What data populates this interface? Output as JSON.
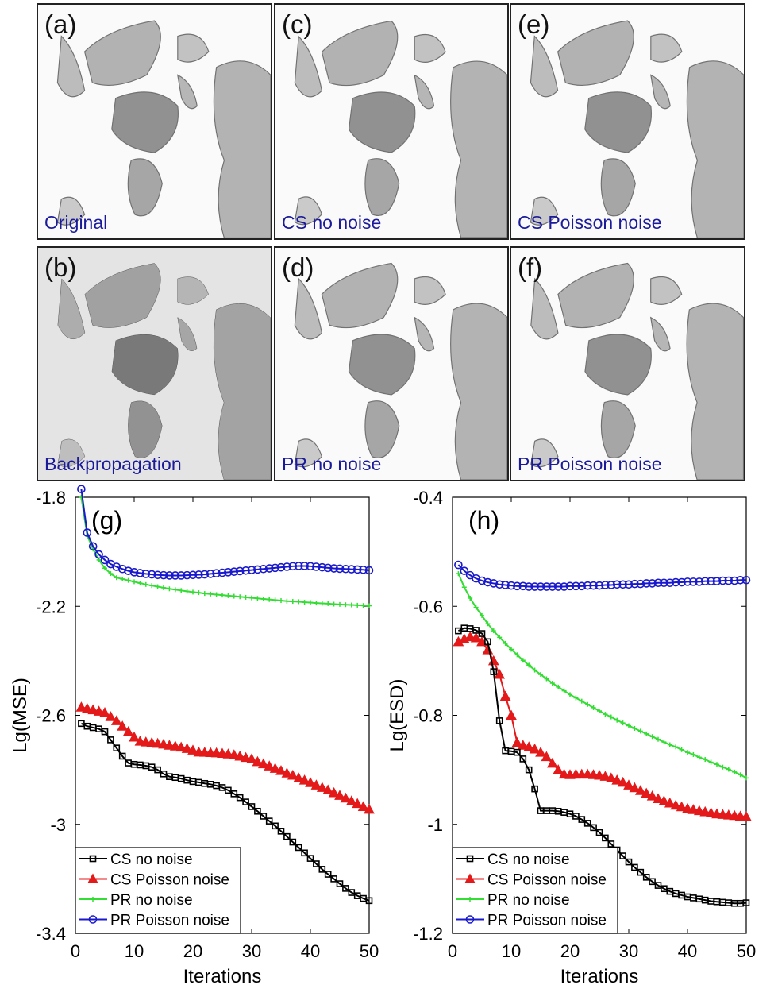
{
  "panels": [
    {
      "id": "a",
      "label": "(a)",
      "caption": "Original"
    },
    {
      "id": "c",
      "label": "(c)",
      "caption": "CS no noise"
    },
    {
      "id": "e",
      "label": "(e)",
      "caption": "CS Poisson noise"
    },
    {
      "id": "b",
      "label": "(b)",
      "caption": "Backpropagation"
    },
    {
      "id": "d",
      "label": "(d)",
      "caption": "PR no noise"
    },
    {
      "id": "f",
      "label": "(f)",
      "caption": "PR Poisson noise"
    }
  ],
  "chart_data": [
    {
      "type": "line",
      "panel_label": "(g)",
      "xlabel": "Iterations",
      "ylabel": "Lg(MSE)",
      "xlim": [
        0,
        50
      ],
      "ylim": [
        -3.4,
        -1.8
      ],
      "xticks": [
        0,
        10,
        20,
        30,
        40,
        50
      ],
      "yticks": [
        -1.8,
        -2.2,
        -2.6,
        -3,
        -3.4
      ],
      "ytick_labels": [
        "-1.8",
        "-2.2",
        "-2.6",
        "-3",
        "-3.4"
      ],
      "legend_position": "bottom-left",
      "x": [
        1,
        2,
        3,
        4,
        5,
        6,
        7,
        8,
        9,
        10,
        11,
        12,
        13,
        14,
        15,
        16,
        17,
        18,
        19,
        20,
        21,
        22,
        23,
        24,
        25,
        26,
        27,
        28,
        29,
        30,
        31,
        32,
        33,
        34,
        35,
        36,
        37,
        38,
        39,
        40,
        41,
        42,
        43,
        44,
        45,
        46,
        47,
        48,
        49,
        50
      ],
      "series": [
        {
          "name": "CS no noise",
          "color": "#000000",
          "marker": "square",
          "values": [
            -2.63,
            -2.64,
            -2.645,
            -2.65,
            -2.66,
            -2.69,
            -2.72,
            -2.75,
            -2.775,
            -2.78,
            -2.782,
            -2.785,
            -2.79,
            -2.8,
            -2.815,
            -2.825,
            -2.828,
            -2.832,
            -2.838,
            -2.843,
            -2.846,
            -2.85,
            -2.853,
            -2.858,
            -2.865,
            -2.875,
            -2.888,
            -2.902,
            -2.918,
            -2.935,
            -2.952,
            -2.97,
            -2.988,
            -3.006,
            -3.025,
            -3.045,
            -3.065,
            -3.085,
            -3.105,
            -3.125,
            -3.145,
            -3.165,
            -3.183,
            -3.2,
            -3.218,
            -3.235,
            -3.25,
            -3.262,
            -3.272,
            -3.28
          ]
        },
        {
          "name": "CS Poisson noise",
          "color": "#e41a1a",
          "marker": "triangle",
          "values": [
            -2.57,
            -2.575,
            -2.58,
            -2.585,
            -2.59,
            -2.605,
            -2.62,
            -2.64,
            -2.66,
            -2.68,
            -2.695,
            -2.698,
            -2.7,
            -2.703,
            -2.706,
            -2.71,
            -2.713,
            -2.717,
            -2.722,
            -2.728,
            -2.735,
            -2.736,
            -2.737,
            -2.738,
            -2.74,
            -2.742,
            -2.745,
            -2.75,
            -2.755,
            -2.76,
            -2.77,
            -2.778,
            -2.786,
            -2.795,
            -2.803,
            -2.812,
            -2.82,
            -2.83,
            -2.838,
            -2.847,
            -2.856,
            -2.865,
            -2.874,
            -2.884,
            -2.894,
            -2.904,
            -2.914,
            -2.924,
            -2.935,
            -2.945
          ]
        },
        {
          "name": "PR no noise",
          "color": "#33dd33",
          "marker": "plus",
          "values": [
            -1.8,
            -1.94,
            -1.99,
            -2.03,
            -2.06,
            -2.08,
            -2.095,
            -2.1,
            -2.105,
            -2.11,
            -2.115,
            -2.12,
            -2.124,
            -2.128,
            -2.132,
            -2.136,
            -2.139,
            -2.142,
            -2.145,
            -2.148,
            -2.15,
            -2.153,
            -2.155,
            -2.157,
            -2.159,
            -2.161,
            -2.163,
            -2.165,
            -2.167,
            -2.169,
            -2.171,
            -2.173,
            -2.175,
            -2.177,
            -2.179,
            -2.181,
            -2.182,
            -2.183,
            -2.185,
            -2.186,
            -2.188,
            -2.189,
            -2.19,
            -2.192,
            -2.193,
            -2.194,
            -2.195,
            -2.196,
            -2.197,
            -2.198
          ]
        },
        {
          "name": "PR Poisson noise",
          "color": "#1a1acc",
          "marker": "circle",
          "values": [
            -1.77,
            -1.93,
            -1.98,
            -2.01,
            -2.03,
            -2.045,
            -2.055,
            -2.063,
            -2.07,
            -2.075,
            -2.078,
            -2.081,
            -2.083,
            -2.085,
            -2.086,
            -2.087,
            -2.087,
            -2.087,
            -2.086,
            -2.085,
            -2.084,
            -2.083,
            -2.081,
            -2.079,
            -2.077,
            -2.075,
            -2.073,
            -2.071,
            -2.069,
            -2.067,
            -2.065,
            -2.063,
            -2.061,
            -2.059,
            -2.057,
            -2.055,
            -2.053,
            -2.052,
            -2.052,
            -2.053,
            -2.055,
            -2.057,
            -2.059,
            -2.061,
            -2.062,
            -2.063,
            -2.064,
            -2.065,
            -2.066,
            -2.068
          ]
        }
      ]
    },
    {
      "type": "line",
      "panel_label": "(h)",
      "xlabel": "Iterations",
      "ylabel": "Lg(ESD)",
      "xlim": [
        0,
        50
      ],
      "ylim": [
        -1.2,
        -0.4
      ],
      "xticks": [
        0,
        10,
        20,
        30,
        40,
        50
      ],
      "yticks": [
        -0.4,
        -0.6,
        -0.8,
        -1,
        -1.2
      ],
      "ytick_labels": [
        "-0.4",
        "-0.6",
        "-0.8",
        "-1",
        "-1.2"
      ],
      "legend_position": "bottom-left",
      "x": [
        1,
        2,
        3,
        4,
        5,
        6,
        7,
        8,
        9,
        10,
        11,
        12,
        13,
        14,
        15,
        16,
        17,
        18,
        19,
        20,
        21,
        22,
        23,
        24,
        25,
        26,
        27,
        28,
        29,
        30,
        31,
        32,
        33,
        34,
        35,
        36,
        37,
        38,
        39,
        40,
        41,
        42,
        43,
        44,
        45,
        46,
        47,
        48,
        49,
        50
      ],
      "series": [
        {
          "name": "CS no noise",
          "color": "#000000",
          "marker": "square",
          "values": [
            -0.645,
            -0.64,
            -0.641,
            -0.644,
            -0.65,
            -0.665,
            -0.72,
            -0.81,
            -0.865,
            -0.866,
            -0.868,
            -0.88,
            -0.9,
            -0.935,
            -0.975,
            -0.975,
            -0.975,
            -0.976,
            -0.978,
            -0.981,
            -0.985,
            -0.991,
            -0.998,
            -1.006,
            -1.015,
            -1.025,
            -1.036,
            -1.047,
            -1.058,
            -1.069,
            -1.079,
            -1.088,
            -1.097,
            -1.105,
            -1.112,
            -1.118,
            -1.123,
            -1.127,
            -1.13,
            -1.133,
            -1.135,
            -1.137,
            -1.139,
            -1.141,
            -1.142,
            -1.143,
            -1.144,
            -1.145,
            -1.145,
            -1.144
          ]
        },
        {
          "name": "CS Poisson noise",
          "color": "#e41a1a",
          "marker": "triangle",
          "values": [
            -0.665,
            -0.66,
            -0.656,
            -0.658,
            -0.665,
            -0.68,
            -0.7,
            -0.725,
            -0.765,
            -0.8,
            -0.85,
            -0.855,
            -0.858,
            -0.862,
            -0.868,
            -0.876,
            -0.888,
            -0.9,
            -0.908,
            -0.909,
            -0.908,
            -0.908,
            -0.908,
            -0.909,
            -0.91,
            -0.912,
            -0.915,
            -0.919,
            -0.923,
            -0.928,
            -0.933,
            -0.938,
            -0.943,
            -0.948,
            -0.953,
            -0.957,
            -0.961,
            -0.965,
            -0.968,
            -0.971,
            -0.973,
            -0.975,
            -0.977,
            -0.979,
            -0.981,
            -0.982,
            -0.983,
            -0.984,
            -0.985,
            -0.986
          ]
        },
        {
          "name": "PR no noise",
          "color": "#33dd33",
          "marker": "plus",
          "values": [
            -0.54,
            -0.565,
            -0.585,
            -0.602,
            -0.617,
            -0.632,
            -0.645,
            -0.657,
            -0.668,
            -0.679,
            -0.689,
            -0.699,
            -0.708,
            -0.717,
            -0.725,
            -0.733,
            -0.741,
            -0.748,
            -0.755,
            -0.762,
            -0.768,
            -0.774,
            -0.78,
            -0.786,
            -0.792,
            -0.798,
            -0.803,
            -0.809,
            -0.814,
            -0.819,
            -0.824,
            -0.829,
            -0.834,
            -0.839,
            -0.844,
            -0.849,
            -0.854,
            -0.858,
            -0.863,
            -0.868,
            -0.872,
            -0.877,
            -0.881,
            -0.886,
            -0.89,
            -0.895,
            -0.899,
            -0.904,
            -0.909,
            -0.915
          ]
        },
        {
          "name": "PR Poisson noise",
          "color": "#1a1acc",
          "marker": "circle",
          "values": [
            -0.524,
            -0.535,
            -0.543,
            -0.549,
            -0.553,
            -0.556,
            -0.558,
            -0.56,
            -0.561,
            -0.562,
            -0.563,
            -0.563,
            -0.564,
            -0.564,
            -0.564,
            -0.564,
            -0.564,
            -0.564,
            -0.564,
            -0.563,
            -0.563,
            -0.563,
            -0.562,
            -0.562,
            -0.562,
            -0.561,
            -0.561,
            -0.56,
            -0.56,
            -0.56,
            -0.559,
            -0.559,
            -0.558,
            -0.558,
            -0.557,
            -0.557,
            -0.557,
            -0.556,
            -0.556,
            -0.555,
            -0.555,
            -0.555,
            -0.554,
            -0.554,
            -0.554,
            -0.553,
            -0.553,
            -0.553,
            -0.552,
            -0.552
          ]
        }
      ]
    }
  ]
}
